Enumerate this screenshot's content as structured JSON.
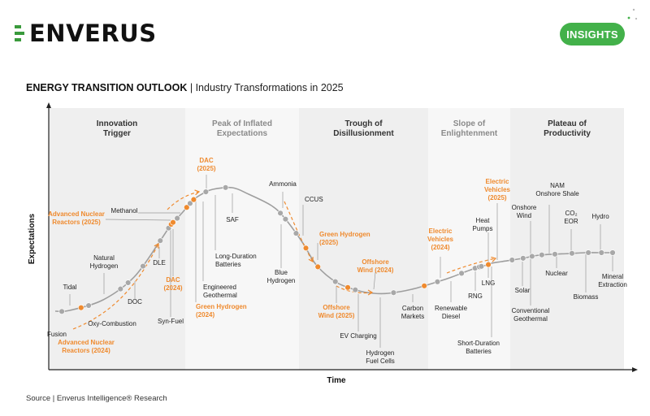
{
  "header": {
    "brand": "ENVERUS",
    "badge": "INSIGHTS"
  },
  "headline": {
    "bold": "ENERGY TRANSITION OUTLOOK",
    "rest": " | Industry Transformations in 2025"
  },
  "source": "Source | Enverus Intelligence® Research",
  "colors": {
    "accent": "#43b14a",
    "highlight": "#ef8a2e",
    "curve": "#9e9e9e",
    "dot": "#a8a8a8"
  },
  "chart_data": {
    "type": "scatter",
    "xlabel": "Time",
    "ylabel": "Expectations",
    "phases": [
      {
        "lines": [
          "Innovation",
          "Trigger"
        ]
      },
      {
        "lines": [
          "Peak of Inflated",
          "Expectations"
        ]
      },
      {
        "lines": [
          "Trough of",
          "Disillusionment"
        ]
      },
      {
        "lines": [
          "Slope of",
          "Enlightenment"
        ]
      },
      {
        "lines": [
          "Plateau of",
          "Productivity"
        ]
      }
    ],
    "points": [
      {
        "lines": [
          "Fusion"
        ],
        "t": 0.01
      },
      {
        "lines": [
          "Advanced Nuclear",
          "Reactors (2024)"
        ],
        "t": 0.04,
        "highlight": true
      },
      {
        "lines": [
          "Tidal"
        ],
        "t": 0.052
      },
      {
        "lines": [
          "Oxy-Combustion"
        ],
        "t": 0.107
      },
      {
        "lines": [
          "Natural",
          "Hydrogen"
        ],
        "t": 0.122
      },
      {
        "lines": [
          "DOC"
        ],
        "t": 0.156
      },
      {
        "lines": [
          "DLE"
        ],
        "t": 0.203
      },
      {
        "lines": [
          "Syn-Fuel"
        ],
        "t": 0.226
      },
      {
        "lines": [
          "Advanced Nuclear",
          "Reactors (2025)"
        ],
        "t": 0.233,
        "highlight": true
      },
      {
        "lines": [
          "DAC",
          "(2024)"
        ],
        "t": 0.237,
        "highlight": true
      },
      {
        "lines": [
          "Methanol"
        ],
        "t": 0.246
      },
      {
        "lines": [
          "Green Hydrogen",
          "(2024)"
        ],
        "t": 0.268,
        "highlight": true
      },
      {
        "lines": [
          "Engineered",
          "Geothermal"
        ],
        "t": 0.276
      },
      {
        "lines": [
          "DAC",
          "(2025)"
        ],
        "t": 0.284,
        "highlight": true
      },
      {
        "lines": [
          "Long-Duration",
          "Batteries"
        ],
        "t": 0.306
      },
      {
        "lines": [
          "SAF"
        ],
        "t": 0.337
      },
      {
        "lines": [
          "Ammonia"
        ],
        "t": 0.431
      },
      {
        "lines": [
          "Blue",
          "Hydrogen"
        ],
        "t": 0.443
      },
      {
        "lines": [
          "CCUS"
        ],
        "t": 0.47
      },
      {
        "lines": [
          "Green Hydrogen",
          "(2025)"
        ],
        "t": 0.497,
        "highlight": true
      },
      {
        "lines": [
          "Offshore",
          "Wind (2025)"
        ],
        "t": 0.531,
        "highlight": true
      },
      {
        "lines": [
          "EV Charging"
        ],
        "t": 0.566
      },
      {
        "lines": [
          "Offshore",
          "Wind (2024)"
        ],
        "t": 0.587,
        "highlight": true
      },
      {
        "lines": [
          "Hydrogen",
          "Fuel Cells"
        ],
        "t": 0.599
      },
      {
        "lines": [
          "Carbon",
          "Markets"
        ],
        "t": 0.658
      },
      {
        "lines": [
          "Electric",
          "Vehicles",
          "(2024)"
        ],
        "t": 0.706,
        "highlight": true
      },
      {
        "lines": [
          "Renewable",
          "Diesel"
        ],
        "t": 0.727
      },
      {
        "lines": [
          "RNG"
        ],
        "t": 0.766
      },
      {
        "lines": [
          "LNG"
        ],
        "t": 0.788
      },
      {
        "lines": [
          "Heat",
          "Pumps"
        ],
        "t": 0.795
      },
      {
        "lines": [
          "Short-Duration",
          "Batteries"
        ],
        "t": 0.798
      },
      {
        "lines": [
          "Electric",
          "Vehicles",
          "(2025)"
        ],
        "t": 0.809,
        "highlight": true
      },
      {
        "lines": [
          "Solar"
        ],
        "t": 0.846
      },
      {
        "lines": [
          "Onshore",
          "Wind"
        ],
        "t": 0.863
      },
      {
        "lines": [
          "Conventional",
          "Geothermal"
        ],
        "t": 0.877
      },
      {
        "lines": [
          "NAM",
          "Onshore Shale"
        ],
        "t": 0.892
      },
      {
        "lines": [
          "Nuclear"
        ],
        "t": 0.912
      },
      {
        "lines": [
          "CO₂",
          "EOR"
        ],
        "t": 0.938
      },
      {
        "lines": [
          "Biomass"
        ],
        "t": 0.963
      },
      {
        "lines": [
          "Hydro"
        ],
        "t": 0.983
      },
      {
        "lines": [
          "Mineral",
          "Extraction"
        ],
        "t": 1.0
      }
    ],
    "grid": false,
    "legend": "none"
  }
}
